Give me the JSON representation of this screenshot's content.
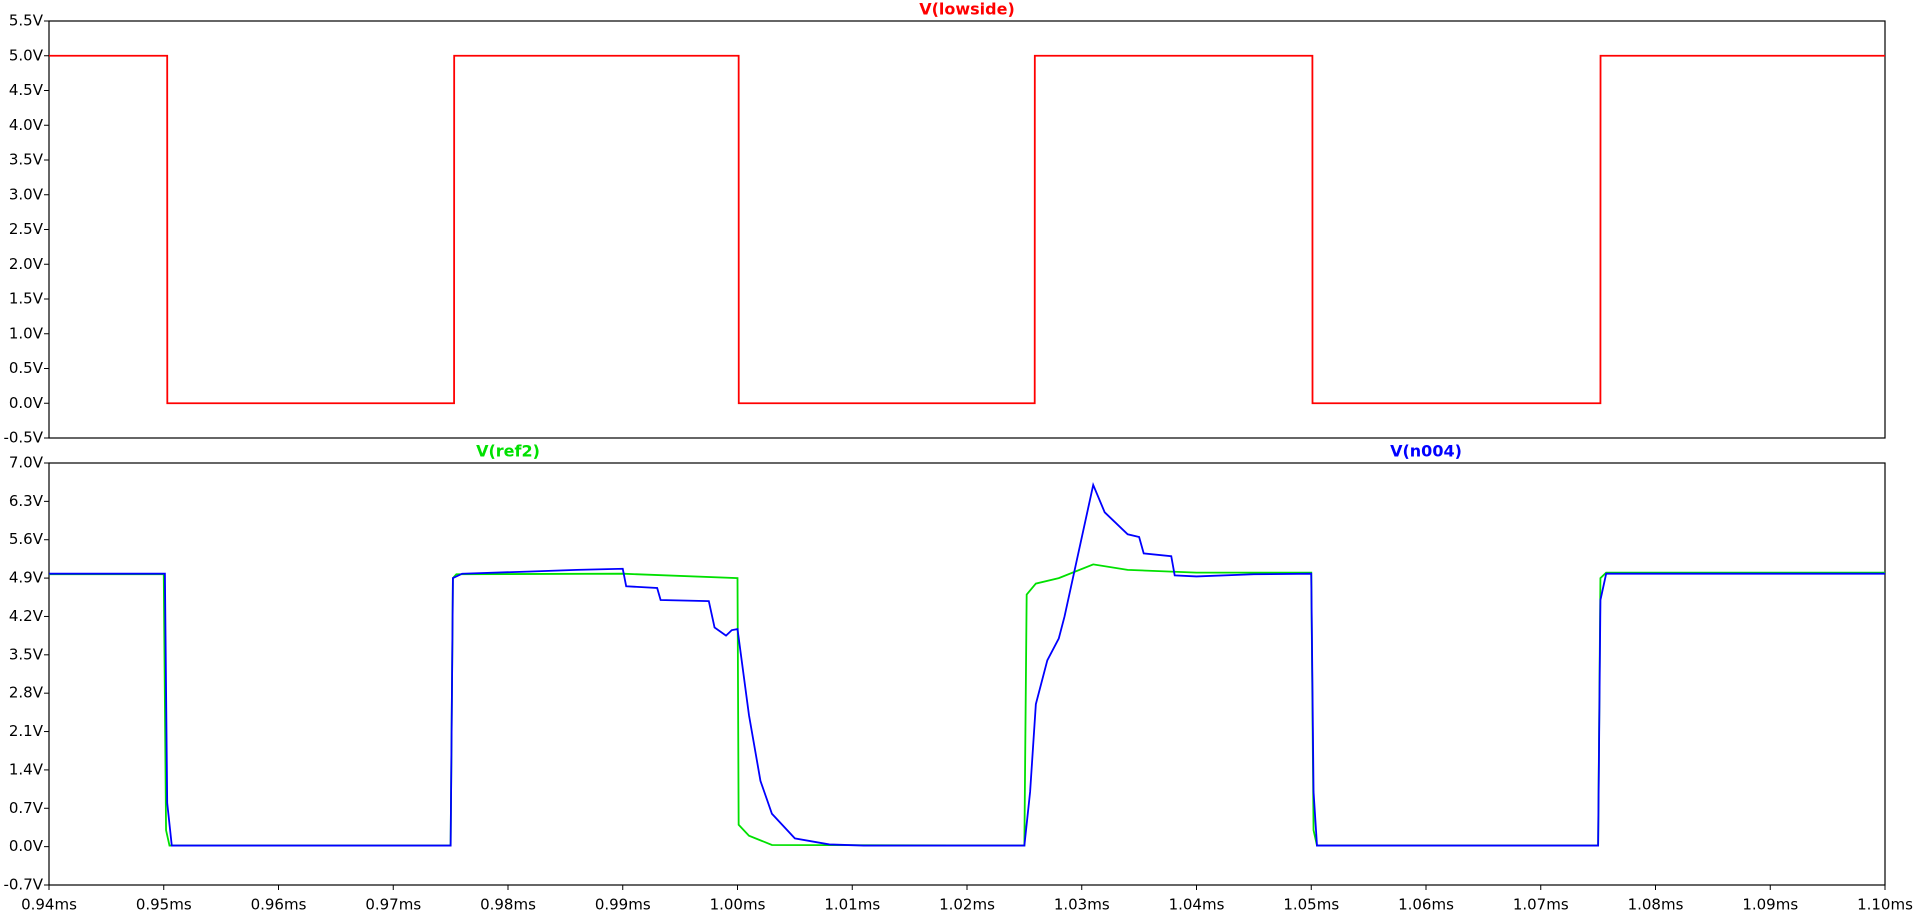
{
  "chart_data": [
    {
      "type": "line",
      "xlim": [
        0.94,
        1.1
      ],
      "ylim": [
        -0.5,
        5.5
      ],
      "yticks": [
        {
          "value": 5.5,
          "label": "5.5V"
        },
        {
          "value": 5.0,
          "label": "5.0V"
        },
        {
          "value": 4.5,
          "label": "4.5V"
        },
        {
          "value": 4.0,
          "label": "4.0V"
        },
        {
          "value": 3.5,
          "label": "3.5V"
        },
        {
          "value": 3.0,
          "label": "3.0V"
        },
        {
          "value": 2.5,
          "label": "2.5V"
        },
        {
          "value": 2.0,
          "label": "2.0V"
        },
        {
          "value": 1.5,
          "label": "1.5V"
        },
        {
          "value": 1.0,
          "label": "1.0V"
        },
        {
          "value": 0.5,
          "label": "0.5V"
        },
        {
          "value": 0.0,
          "label": "0.0V"
        },
        {
          "value": -0.5,
          "label": "-0.5V"
        }
      ],
      "series": [
        {
          "name": "V(lowside)",
          "color": "#ff0000",
          "x": [
            0.94,
            0.9503,
            0.95031,
            0.9753,
            0.97531,
            1.0001,
            1.00011,
            1.0259,
            1.02591,
            1.0501,
            1.05011,
            1.0752,
            1.07521,
            1.1
          ],
          "values": [
            5,
            5,
            0,
            0,
            5,
            5,
            0,
            0,
            5,
            5,
            0,
            0,
            5,
            5
          ]
        }
      ]
    },
    {
      "type": "line",
      "xlim": [
        0.94,
        1.1
      ],
      "ylim": [
        -0.7,
        7.0
      ],
      "xticks": [
        {
          "value": 0.94,
          "label": "0.94ms"
        },
        {
          "value": 0.95,
          "label": "0.95ms"
        },
        {
          "value": 0.96,
          "label": "0.96ms"
        },
        {
          "value": 0.97,
          "label": "0.97ms"
        },
        {
          "value": 0.98,
          "label": "0.98ms"
        },
        {
          "value": 0.99,
          "label": "0.99ms"
        },
        {
          "value": 1.0,
          "label": "1.00ms"
        },
        {
          "value": 1.01,
          "label": "1.01ms"
        },
        {
          "value": 1.02,
          "label": "1.02ms"
        },
        {
          "value": 1.03,
          "label": "1.03ms"
        },
        {
          "value": 1.04,
          "label": "1.04ms"
        },
        {
          "value": 1.05,
          "label": "1.05ms"
        },
        {
          "value": 1.06,
          "label": "1.06ms"
        },
        {
          "value": 1.07,
          "label": "1.07ms"
        },
        {
          "value": 1.08,
          "label": "1.08ms"
        },
        {
          "value": 1.09,
          "label": "1.09ms"
        },
        {
          "value": 1.1,
          "label": "1.10ms"
        }
      ],
      "yticks": [
        {
          "value": 7.0,
          "label": "7.0V"
        },
        {
          "value": 6.3,
          "label": "6.3V"
        },
        {
          "value": 5.6,
          "label": "5.6V"
        },
        {
          "value": 4.9,
          "label": "4.9V"
        },
        {
          "value": 4.2,
          "label": "4.2V"
        },
        {
          "value": 3.5,
          "label": "3.5V"
        },
        {
          "value": 2.8,
          "label": "2.8V"
        },
        {
          "value": 2.1,
          "label": "2.1V"
        },
        {
          "value": 1.4,
          "label": "1.4V"
        },
        {
          "value": 0.7,
          "label": "0.7V"
        },
        {
          "value": 0.0,
          "label": "0.0V"
        },
        {
          "value": -0.7,
          "label": "-0.7V"
        }
      ],
      "series": [
        {
          "name": "V(ref2)",
          "color": "#00e000",
          "x": [
            0.94,
            0.95,
            0.9502,
            0.9505,
            0.975,
            0.9752,
            0.9755,
            0.99,
            1.0,
            1.0001,
            1.001,
            1.003,
            1.025,
            1.0252,
            1.026,
            1.028,
            1.031,
            1.034,
            1.04,
            1.05,
            1.0502,
            1.0505,
            1.075,
            1.0752,
            1.0757,
            1.1
          ],
          "values": [
            4.97,
            4.97,
            0.3,
            0.02,
            0.02,
            4.9,
            4.97,
            4.98,
            4.9,
            0.4,
            0.2,
            0.03,
            0.02,
            4.6,
            4.8,
            4.9,
            5.15,
            5.05,
            5.0,
            5.0,
            0.3,
            0.02,
            0.02,
            4.9,
            5.0,
            5.0
          ]
        },
        {
          "name": "V(n004)",
          "color": "#0000ff",
          "x": [
            0.94,
            0.9501,
            0.9503,
            0.9507,
            0.975,
            0.9752,
            0.976,
            0.982,
            0.986,
            0.99,
            0.9903,
            0.993,
            0.9933,
            0.9975,
            0.998,
            0.999,
            0.9995,
            1.0,
            1.001,
            1.002,
            1.003,
            1.005,
            1.008,
            1.011,
            1.025,
            1.0255,
            1.026,
            1.027,
            1.028,
            1.0285,
            1.031,
            1.032,
            1.034,
            1.035,
            1.0354,
            1.0378,
            1.0381,
            1.04,
            1.045,
            1.05,
            1.0502,
            1.0505,
            1.075,
            1.0752,
            1.0757,
            1.1
          ],
          "values": [
            4.98,
            4.98,
            0.8,
            0.02,
            0.02,
            4.9,
            4.98,
            5.02,
            5.05,
            5.07,
            4.75,
            4.72,
            4.5,
            4.48,
            4.0,
            3.85,
            3.95,
            3.97,
            2.4,
            1.2,
            0.6,
            0.15,
            0.04,
            0.02,
            0.02,
            1.0,
            2.6,
            3.4,
            3.8,
            4.2,
            6.6,
            6.1,
            5.7,
            5.65,
            5.35,
            5.3,
            4.95,
            4.93,
            4.97,
            4.98,
            1.0,
            0.02,
            0.02,
            4.5,
            4.98,
            4.98
          ]
        }
      ]
    }
  ]
}
